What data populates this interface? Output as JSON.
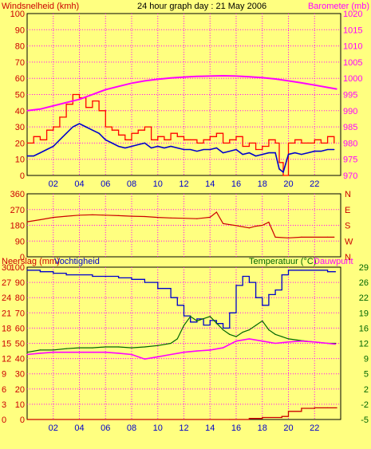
{
  "header": {
    "left_label": "Windsnelheid (kmh)",
    "title": "24 hour graph day : 21 May 2006",
    "right_label": "Barometer (mb)"
  },
  "panel_bottom": {
    "left_label": "Neerslag (mm)",
    "left_label2": "Vochtigheid",
    "right_label": "Temperatuur (°C)",
    "right_label2": "Dauwpunt"
  },
  "colors": {
    "background": "#ffff80",
    "grid": "#ff00ff",
    "wind_gust": "#ff0000",
    "wind_avg": "#0000cc",
    "barometer": "#ff00ff",
    "direction": "#cc0000",
    "humidity": "#0000cc",
    "temperature": "#006600",
    "dewpoint": "#ff00ff",
    "rain": "#cc0000",
    "left_axis_text": "#cc0000",
    "right_axis_text_top": "#ff00ff",
    "right_axis_text_bottom": "#006600"
  },
  "chart_data": [
    {
      "type": "line",
      "id": "wind-baro",
      "x_ticks": [
        "02",
        "04",
        "06",
        "08",
        "10",
        "12",
        "14",
        "16",
        "18",
        "20",
        "22"
      ],
      "y_left_ticks": [
        "0",
        "10",
        "20",
        "30",
        "40",
        "50",
        "60",
        "70",
        "80",
        "90",
        "100"
      ],
      "y_right_ticks": [
        "970",
        "975",
        "980",
        "985",
        "990",
        "995",
        "1000",
        "1005",
        "1010",
        "1015",
        "1020"
      ],
      "ylim_left": [
        0,
        100
      ],
      "ylim_right": [
        970,
        1020
      ],
      "xlim": [
        0,
        24
      ],
      "series": [
        {
          "key": "gust",
          "axis": "left",
          "x": [
            0,
            0.5,
            1,
            1.5,
            2,
            2.5,
            3,
            3.5,
            4,
            4.5,
            5,
            5.5,
            6,
            6.5,
            7,
            7.5,
            8,
            8.5,
            9,
            9.5,
            10,
            10.5,
            11,
            11.5,
            12,
            12.5,
            13,
            13.5,
            14,
            14.5,
            15,
            15.5,
            16,
            16.5,
            17,
            17.5,
            18,
            18.5,
            19,
            19.3,
            19.6,
            20,
            20.5,
            21,
            21.5,
            22,
            22.5,
            23,
            23.5
          ],
          "y": [
            20,
            24,
            22,
            28,
            30,
            36,
            44,
            50,
            48,
            42,
            46,
            40,
            30,
            28,
            25,
            22,
            26,
            28,
            30,
            22,
            24,
            22,
            26,
            24,
            22,
            22,
            20,
            22,
            24,
            26,
            20,
            22,
            24,
            18,
            20,
            16,
            18,
            22,
            20,
            8,
            0,
            20,
            22,
            20,
            20,
            22,
            20,
            24,
            20
          ]
        },
        {
          "key": "avg",
          "axis": "left",
          "x": [
            0,
            0.5,
            1,
            1.5,
            2,
            2.5,
            3,
            3.5,
            4,
            4.5,
            5,
            5.5,
            6,
            6.5,
            7,
            7.5,
            8,
            8.5,
            9,
            9.5,
            10,
            10.5,
            11,
            11.5,
            12,
            12.5,
            13,
            13.5,
            14,
            14.5,
            15,
            15.5,
            16,
            16.5,
            17,
            17.5,
            18,
            18.5,
            19,
            19.3,
            19.6,
            20,
            20.5,
            21,
            21.5,
            22,
            22.5,
            23,
            23.5
          ],
          "y": [
            12,
            12,
            14,
            16,
            18,
            22,
            26,
            30,
            32,
            30,
            28,
            26,
            22,
            20,
            18,
            17,
            18,
            19,
            20,
            17,
            18,
            17,
            18,
            17,
            16,
            16,
            15,
            16,
            16,
            17,
            14,
            15,
            16,
            13,
            14,
            12,
            13,
            14,
            14,
            4,
            2,
            13,
            14,
            13,
            14,
            15,
            15,
            16,
            16
          ]
        },
        {
          "key": "barometer",
          "axis": "right",
          "x": [
            0,
            1,
            2,
            3,
            4,
            5,
            6,
            7,
            8,
            9,
            10,
            11,
            12,
            13,
            14,
            15,
            16,
            17,
            18,
            19,
            20,
            21,
            22,
            23,
            23.7
          ],
          "y": [
            990,
            990.5,
            991.5,
            992.5,
            993.5,
            995,
            996.5,
            997.5,
            998.5,
            999.2,
            999.7,
            1000.1,
            1000.4,
            1000.6,
            1000.7,
            1000.8,
            1000.7,
            1000.5,
            1000.2,
            999.8,
            999.2,
            998.6,
            997.9,
            997.2,
            996.7
          ]
        }
      ]
    },
    {
      "type": "line",
      "id": "wind-direction",
      "y_left_ticks": [
        "0",
        "90",
        "180",
        "270",
        "360"
      ],
      "y_right_labels": [
        "N",
        "W",
        "S",
        "E",
        "N"
      ],
      "ylim_left": [
        0,
        360
      ],
      "xlim": [
        0,
        24
      ],
      "series": [
        {
          "key": "direction",
          "axis": "left",
          "x": [
            0,
            1,
            2,
            3,
            4,
            5,
            6,
            7,
            8,
            9,
            10,
            11,
            12,
            13,
            14,
            14.5,
            15,
            16,
            17,
            17.5,
            18,
            18.5,
            19,
            20,
            21,
            22,
            23,
            23.5
          ],
          "y": [
            200,
            212,
            225,
            232,
            238,
            240,
            238,
            235,
            232,
            230,
            225,
            222,
            220,
            218,
            226,
            255,
            190,
            178,
            165,
            175,
            180,
            198,
            112,
            108,
            112,
            112,
            112,
            112
          ]
        }
      ]
    },
    {
      "type": "line",
      "id": "rain-humidity-temp",
      "x_ticks": [
        "02",
        "04",
        "06",
        "08",
        "10",
        "12",
        "14",
        "16",
        "18",
        "20",
        "22"
      ],
      "y_left_ticks_outer": [
        "0",
        "3",
        "6",
        "9",
        "12",
        "15",
        "18",
        "21",
        "24",
        "27",
        "30"
      ],
      "y_left_ticks_inner": [
        "0",
        "10",
        "20",
        "30",
        "40",
        "50",
        "60",
        "70",
        "80",
        "90",
        "100"
      ],
      "y_right_ticks": [
        "-5",
        "-2",
        "2",
        "5",
        "9",
        "12",
        "16",
        "19",
        "22",
        "26",
        "29"
      ],
      "ylim_humidity": [
        0,
        100
      ],
      "ylim_temp": [
        -5,
        29
      ],
      "ylim_rain": [
        0,
        30
      ],
      "xlim": [
        0,
        24
      ],
      "series": [
        {
          "key": "humidity",
          "axis": "humidity",
          "x": [
            0,
            1,
            2,
            3,
            4,
            5,
            6,
            7,
            8,
            9,
            10,
            11,
            11.5,
            12,
            12.5,
            13,
            13.5,
            14,
            14.5,
            15,
            15.5,
            16,
            16.5,
            17,
            17.5,
            18,
            18.5,
            19,
            19.5,
            20,
            21,
            22,
            23,
            23.6
          ],
          "y": [
            98,
            97,
            96,
            95,
            95,
            94,
            94,
            93,
            92,
            90,
            86,
            80,
            75,
            68,
            64,
            66,
            62,
            65,
            63,
            60,
            70,
            88,
            94,
            90,
            80,
            75,
            82,
            85,
            95,
            98,
            98,
            98,
            97,
            97
          ]
        },
        {
          "key": "temperature",
          "axis": "temp",
          "x": [
            0,
            1,
            2,
            3,
            4,
            5,
            6,
            7,
            8,
            9,
            10,
            11,
            11.5,
            12,
            12.5,
            13,
            13.5,
            14,
            14.5,
            15,
            15.5,
            16,
            16.5,
            17,
            17.5,
            18,
            18.5,
            19,
            19.5,
            20,
            21,
            22,
            23,
            23.6
          ],
          "y": [
            10,
            10.5,
            10.5,
            10.8,
            11,
            11,
            11.2,
            11.2,
            11,
            11.2,
            11.5,
            12,
            13,
            16,
            18,
            17,
            17.5,
            18,
            16.5,
            15,
            14,
            13.5,
            14.5,
            15,
            16,
            17,
            15,
            14,
            13.5,
            13,
            12.6,
            12.3,
            12,
            12
          ]
        },
        {
          "key": "dewpoint",
          "axis": "temp",
          "x": [
            0,
            1,
            2,
            3,
            4,
            5,
            6,
            7,
            8,
            9,
            10,
            11,
            12,
            13,
            14,
            15,
            16,
            17,
            18,
            19,
            20,
            21,
            22,
            23,
            23.6
          ],
          "y": [
            9.5,
            9.8,
            10,
            10,
            10,
            10,
            10,
            9.8,
            9.5,
            8.5,
            9,
            9.5,
            10,
            10.3,
            10.5,
            11,
            12.5,
            13,
            12.5,
            12,
            12.3,
            12.5,
            12.3,
            12,
            11.8
          ]
        },
        {
          "key": "rain",
          "axis": "rain",
          "x": [
            0,
            15.5,
            17,
            18,
            19.5,
            20,
            21,
            22,
            23,
            23.7
          ],
          "y": [
            0,
            0,
            0.2,
            0.4,
            0.6,
            1.6,
            2.2,
            2.3,
            2.3,
            2.3
          ]
        }
      ]
    }
  ]
}
